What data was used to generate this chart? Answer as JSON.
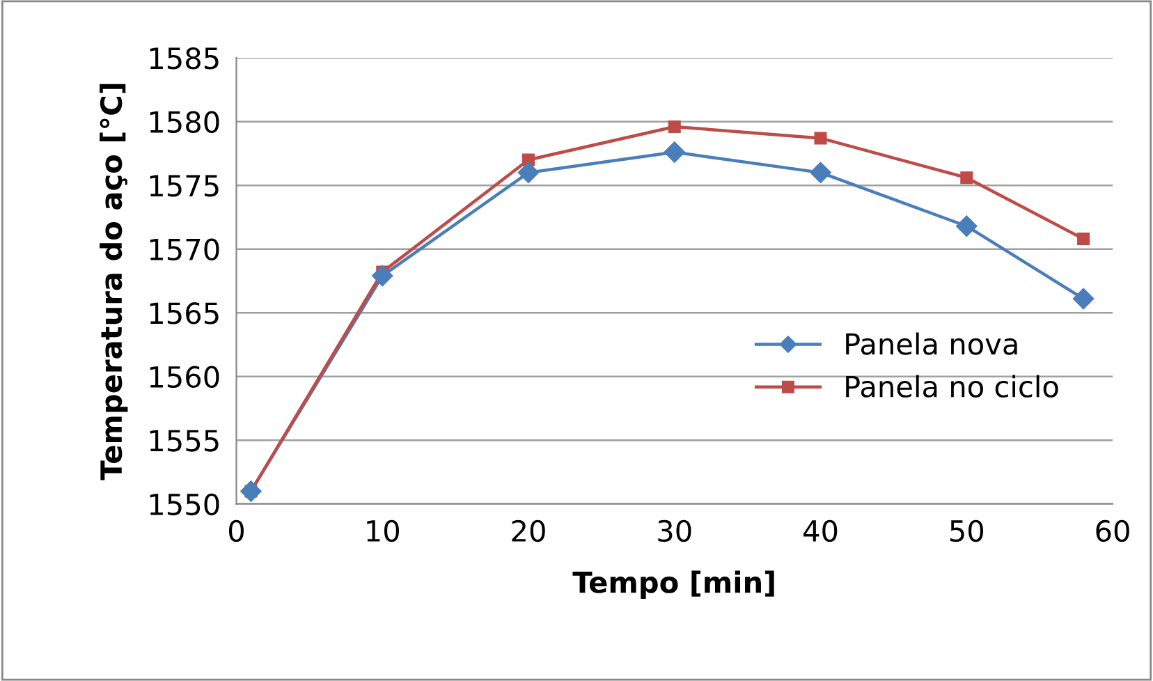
{
  "chart_data": {
    "type": "line",
    "xlabel": "Tempo [min]",
    "ylabel": "Temperatura do aço [°C]",
    "x": [
      1,
      10,
      20,
      30,
      40,
      50,
      58
    ],
    "series": [
      {
        "name": "Panela nova",
        "color": "#4a7ebb",
        "marker": "diamond",
        "values": [
          1551,
          1567.9,
          1576,
          1577.6,
          1576,
          1571.8,
          1566.1
        ]
      },
      {
        "name": "Panela no ciclo",
        "color": "#be4b48",
        "marker": "square",
        "values": [
          1551,
          1568.2,
          1577,
          1579.6,
          1578.7,
          1575.6,
          1570.8
        ]
      }
    ],
    "xlim": [
      0,
      60
    ],
    "xticks": [
      0,
      10,
      20,
      30,
      40,
      50,
      60
    ],
    "ylim": [
      1550,
      1585
    ],
    "yticks": [
      1550,
      1555,
      1560,
      1565,
      1570,
      1575,
      1580,
      1585
    ],
    "grid": "y",
    "legend": "right",
    "line_style": "solid"
  }
}
